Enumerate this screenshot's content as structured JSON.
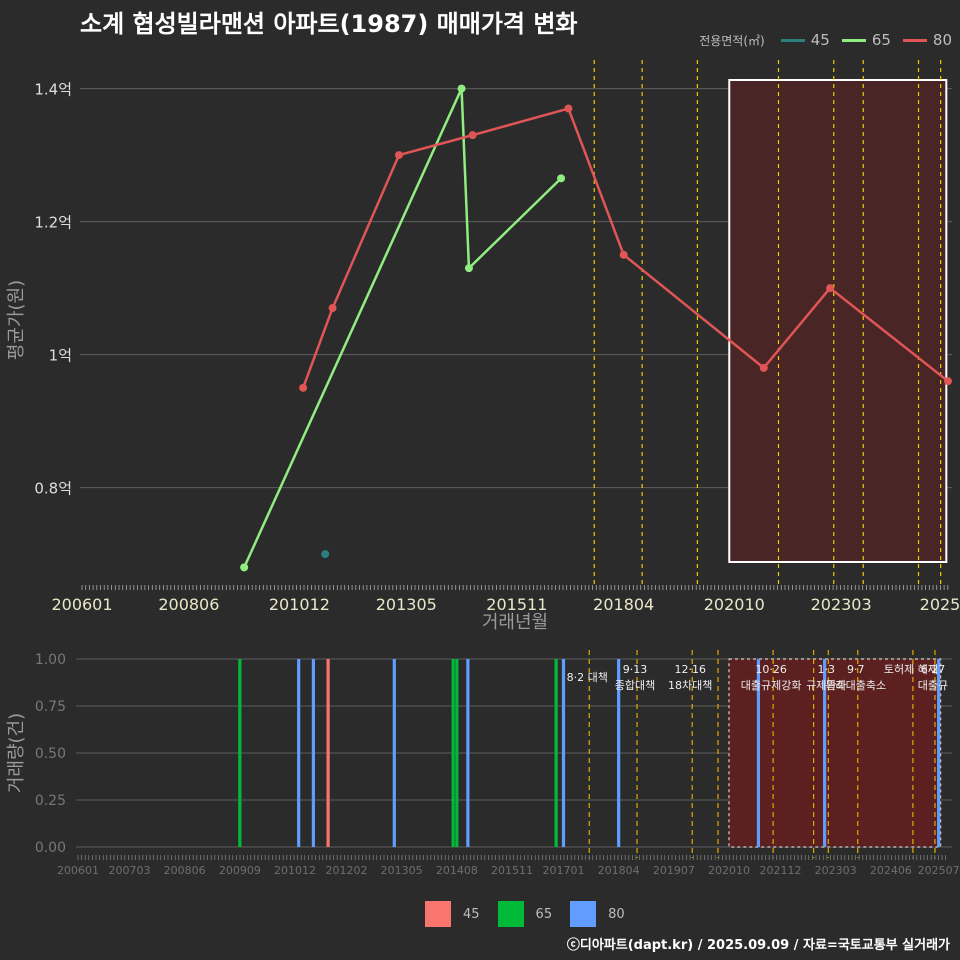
{
  "title": "소계 협성빌라맨션 아파트(1987) 매매가격 변화",
  "legend": {
    "title": "전용면적(㎡)",
    "items": [
      {
        "label": "45",
        "color": "#2a7f7f"
      },
      {
        "label": "65",
        "color": "#90ee80"
      },
      {
        "label": "80",
        "color": "#e05555"
      }
    ]
  },
  "bottom_legend": {
    "items": [
      {
        "label": "45",
        "color": "#f8766d"
      },
      {
        "label": "65",
        "color": "#00ba38"
      },
      {
        "label": "80",
        "color": "#619cff"
      }
    ]
  },
  "footer": "ⓒ디아파트(dapt.kr) / 2025.09.09 / 자료=국토교통부 실거래가",
  "chart_data": [
    {
      "type": "line",
      "xlabel": "거래년월",
      "ylabel": "평균가(원)",
      "x_ticks": [
        "200601",
        "200806",
        "201012",
        "201305",
        "201511",
        "201804",
        "202010",
        "202303",
        "2025"
      ],
      "y_ticks": [
        {
          "value": 0.8,
          "label": "0.8억"
        },
        {
          "value": 1.0,
          "label": "1억"
        },
        {
          "value": 1.2,
          "label": "1.2억"
        },
        {
          "value": 1.4,
          "label": "1.4억"
        }
      ],
      "ylim": [
        0.655,
        1.455
      ],
      "xlim": [
        "2006-01",
        "2025-08"
      ],
      "series": [
        {
          "name": "45",
          "color": "#2a7f7f",
          "points": [
            {
              "x": "2011-07",
              "y": 0.7
            }
          ]
        },
        {
          "name": "65",
          "color": "#90ee80",
          "points": [
            {
              "x": "2009-09",
              "y": 0.68
            },
            {
              "x": "2014-08",
              "y": 1.4
            },
            {
              "x": "2014-10",
              "y": 1.13
            },
            {
              "x": "2016-11",
              "y": 1.265
            }
          ]
        },
        {
          "name": "80",
          "color": "#e05555",
          "points": [
            {
              "x": "2011-01",
              "y": 0.95
            },
            {
              "x": "2011-09",
              "y": 1.07
            },
            {
              "x": "2013-03",
              "y": 1.3
            },
            {
              "x": "2014-11",
              "y": 1.33
            },
            {
              "x": "2017-01",
              "y": 1.37
            },
            {
              "x": "2018-04",
              "y": 1.15
            },
            {
              "x": "2021-06",
              "y": 0.98
            },
            {
              "x": "2022-12",
              "y": 1.1
            },
            {
              "x": "2025-08",
              "y": 0.96
            }
          ]
        }
      ],
      "policy_lines": [
        "2017-08",
        "2018-09",
        "2019-12",
        "2021-10",
        "2023-01",
        "2023-09",
        "2024-12",
        "2025-06"
      ],
      "highlight_range": [
        "2020-10",
        "2025-07"
      ]
    },
    {
      "type": "bar",
      "xlabel": "",
      "ylabel": "거래량(건)",
      "x_ticks": [
        "200601",
        "200703",
        "200806",
        "200909",
        "201012",
        "201202",
        "201305",
        "201408",
        "201511",
        "201701",
        "201804",
        "201907",
        "202010",
        "202112",
        "202303",
        "202406",
        "202507"
      ],
      "y_ticks": [
        "0.00",
        "0.25",
        "0.50",
        "0.75",
        "1.00"
      ],
      "ylim": [
        0,
        1
      ],
      "bars": [
        {
          "x": "2009-09",
          "series": "65",
          "value": 1
        },
        {
          "x": "2011-01",
          "series": "80",
          "value": 1
        },
        {
          "x": "2011-05",
          "series": "80",
          "value": 1
        },
        {
          "x": "2011-09",
          "series": "45",
          "value": 1
        },
        {
          "x": "2013-03",
          "series": "80",
          "value": 1
        },
        {
          "x": "2014-07",
          "series": "65",
          "value": 1
        },
        {
          "x": "2014-08",
          "series": "65",
          "value": 1
        },
        {
          "x": "2014-11",
          "series": "80",
          "value": 1
        },
        {
          "x": "2016-11",
          "series": "65",
          "value": 1
        },
        {
          "x": "2017-01",
          "series": "80",
          "value": 1
        },
        {
          "x": "2018-04",
          "series": "80",
          "value": 1
        },
        {
          "x": "2021-06",
          "series": "80",
          "value": 1
        },
        {
          "x": "2022-12",
          "series": "80",
          "value": 1
        },
        {
          "x": "2025-07",
          "series": "80",
          "value": 1
        }
      ],
      "policy_lines": [
        "2017-08",
        "2018-09",
        "2019-12",
        "2020-07",
        "2021-10",
        "2022-09",
        "2023-01",
        "2023-09",
        "2024-12",
        "2025-06"
      ],
      "highlight_range": [
        "2020-10",
        "2025-07"
      ],
      "annotations": [
        {
          "x": "2017-08",
          "lines": [
            "8·2 대책"
          ]
        },
        {
          "x": "2018-09",
          "lines": [
            "9·13",
            "종합대책"
          ]
        },
        {
          "x": "2019-12",
          "lines": [
            "12·16",
            "18차대책"
          ]
        },
        {
          "x": "2021-10",
          "lines": [
            "10·26",
            "대출규제강화"
          ]
        },
        {
          "x": "2023-01",
          "lines": [
            "1·3",
            "규제완화"
          ]
        },
        {
          "x": "2023-09",
          "lines": [
            "9·7",
            "특례대출축소"
          ]
        },
        {
          "x": "2024-12",
          "lines": [
            "토허제 해제"
          ]
        },
        {
          "x": "2025-06",
          "lines": [
            "6·27",
            "대출규"
          ]
        }
      ]
    }
  ]
}
